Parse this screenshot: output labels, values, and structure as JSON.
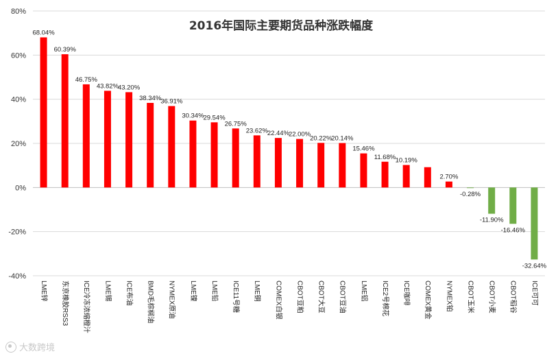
{
  "chart_data": {
    "type": "bar",
    "title": "2016年国际主要期货品种涨跌幅度",
    "xlabel": "",
    "ylabel": "",
    "ylim": [
      -40,
      80
    ],
    "yticks": [
      "80%",
      "60%",
      "40%",
      "20%",
      "0%",
      "-20%",
      "-40%"
    ],
    "ytick_values": [
      80,
      60,
      40,
      20,
      0,
      -20,
      -40
    ],
    "grid": true,
    "legend": "none",
    "positive_color": "#ff0000",
    "negative_color": "#70ad47",
    "categories": [
      "LME锌",
      "东京橡胶RSS3",
      "ICE冷冻浓缩橙汁",
      "LME锡",
      "ICE布油",
      "BMD毛棕榈油",
      "NYMEX原油",
      "LME镍",
      "LME铅",
      "ICE11号糖",
      "LME铜",
      "COMEX白银",
      "CBOT豆粕",
      "CBOT大豆",
      "CBOT豆油",
      "LME铝",
      "ICE2号棉花",
      "ICE咖啡",
      "COMEX黄金",
      "NYMEX铂",
      "CBOT玉米",
      "CBOT小麦",
      "CBOT稻谷",
      "ICE可可"
    ],
    "values": [
      68.04,
      60.39,
      46.75,
      43.82,
      43.2,
      38.34,
      36.91,
      30.34,
      29.54,
      26.75,
      23.62,
      22.44,
      22.0,
      20.22,
      20.14,
      15.46,
      11.68,
      10.19,
      9.2,
      2.7,
      -0.28,
      -11.9,
      -16.46,
      -32.64
    ],
    "data_labels": [
      "68.04%",
      "60.39%",
      "46.75%",
      "43.82%",
      "43.20%",
      "38.34%",
      "36.91%",
      "30.34%",
      "29.54%",
      "26.75%",
      "23.62%",
      "22.44%",
      "22.00%",
      "20.22%",
      "20.14%",
      "15.46%",
      "11.68%",
      "10.19%",
      "",
      "2.70%",
      "-0.28%",
      "-11.90%",
      "-16.46%",
      "-32.64%"
    ]
  },
  "watermark": {
    "text": "大数跨境",
    "icon": "camera-icon"
  }
}
